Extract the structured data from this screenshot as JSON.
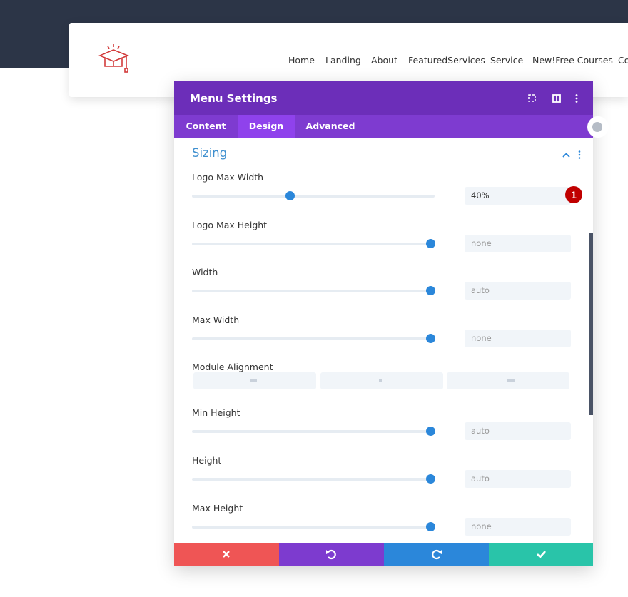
{
  "header": {
    "nav": [
      "Home",
      "Landing",
      "About",
      "FeaturedServices",
      "Service",
      "New!Free Courses",
      "Co"
    ]
  },
  "modal": {
    "title": "Menu Settings",
    "tabs": [
      "Content",
      "Design",
      "Advanced"
    ],
    "active_tab": "Design",
    "section": {
      "title": "Sizing",
      "fields": [
        {
          "label": "Logo Max Width",
          "value": "40%"
        },
        {
          "label": "Logo Max Height",
          "value": "none"
        },
        {
          "label": "Width",
          "value": "auto"
        },
        {
          "label": "Max Width",
          "value": "none"
        },
        {
          "label": "Module Alignment"
        },
        {
          "label": "Min Height",
          "value": "auto"
        },
        {
          "label": "Height",
          "value": "auto"
        },
        {
          "label": "Max Height",
          "value": "none"
        }
      ]
    },
    "badge": "1"
  }
}
